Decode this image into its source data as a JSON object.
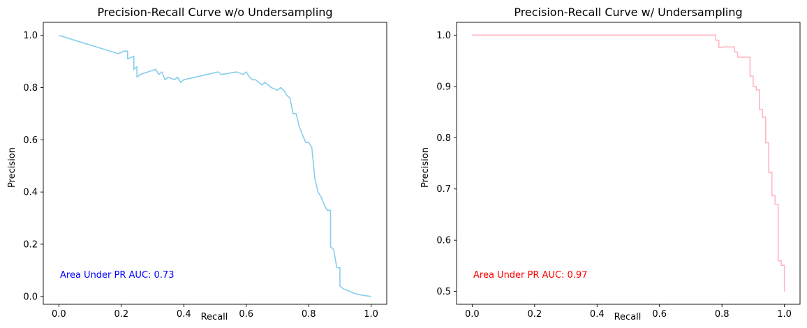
{
  "chart_data": [
    {
      "type": "line",
      "title": "Precision-Recall Curve w/o Undersampling",
      "xlabel": "Recall",
      "ylabel": "Precision",
      "xlim": [
        -0.05,
        1.05
      ],
      "ylim": [
        -0.03,
        1.05
      ],
      "xticks": [
        0.0,
        0.2,
        0.4,
        0.6,
        0.8,
        1.0
      ],
      "xtick_labels": [
        "0.0",
        "0.2",
        "0.4",
        "0.6",
        "0.8",
        "1.0"
      ],
      "yticks": [
        0.0,
        0.2,
        0.4,
        0.6,
        0.8,
        1.0
      ],
      "ytick_labels": [
        "0.0",
        "0.2",
        "0.4",
        "0.6",
        "0.8",
        "1.0"
      ],
      "grid": false,
      "line_color": "#87ceeb",
      "annotation": {
        "text": "Area Under PR AUC: 0.73",
        "color": "#0000ff",
        "x": 0.0,
        "y": 0.0
      },
      "series": [
        {
          "x": [
            0.0,
            0.19,
            0.21,
            0.22,
            0.22,
            0.24,
            0.24,
            0.25,
            0.25,
            0.26,
            0.31,
            0.32,
            0.33,
            0.34,
            0.35,
            0.37,
            0.38,
            0.39,
            0.4,
            0.51,
            0.52,
            0.57,
            0.59,
            0.6,
            0.61,
            0.62,
            0.63,
            0.64,
            0.65,
            0.66,
            0.67,
            0.68,
            0.7,
            0.71,
            0.72,
            0.73,
            0.74,
            0.75,
            0.76,
            0.77,
            0.78,
            0.79,
            0.8,
            0.81,
            0.82,
            0.83,
            0.84,
            0.85,
            0.86,
            0.87,
            0.87,
            0.88,
            0.89,
            0.9,
            0.9,
            0.91,
            0.93,
            0.95,
            0.97,
            1.0
          ],
          "y": [
            1.0,
            0.93,
            0.94,
            0.94,
            0.91,
            0.92,
            0.87,
            0.88,
            0.84,
            0.85,
            0.87,
            0.85,
            0.86,
            0.83,
            0.84,
            0.83,
            0.84,
            0.82,
            0.83,
            0.86,
            0.85,
            0.86,
            0.85,
            0.86,
            0.84,
            0.83,
            0.83,
            0.82,
            0.81,
            0.82,
            0.81,
            0.8,
            0.79,
            0.8,
            0.79,
            0.77,
            0.76,
            0.7,
            0.7,
            0.65,
            0.62,
            0.59,
            0.59,
            0.57,
            0.45,
            0.4,
            0.38,
            0.35,
            0.33,
            0.33,
            0.19,
            0.18,
            0.11,
            0.11,
            0.04,
            0.03,
            0.02,
            0.01,
            0.005,
            0.0
          ]
        }
      ]
    },
    {
      "type": "line",
      "title": "Precision-Recall Curve w/ Undersampling",
      "xlabel": "Recall",
      "ylabel": "Precision",
      "xlim": [
        -0.05,
        1.05
      ],
      "ylim": [
        0.475,
        1.025
      ],
      "xticks": [
        0.0,
        0.2,
        0.4,
        0.6,
        0.8,
        1.0
      ],
      "xtick_labels": [
        "0.0",
        "0.2",
        "0.4",
        "0.6",
        "0.8",
        "1.0"
      ],
      "yticks": [
        0.5,
        0.6,
        0.7,
        0.8,
        0.9,
        1.0
      ],
      "ytick_labels": [
        "0.5",
        "0.6",
        "0.7",
        "0.8",
        "0.9",
        "1.0"
      ],
      "grid": false,
      "line_color": "#ffb6c1",
      "annotation": {
        "text": "Area Under PR AUC: 0.97",
        "color": "#ff0000",
        "x": 0.0,
        "y": 0.5
      },
      "series": [
        {
          "x": [
            0.0,
            0.78,
            0.78,
            0.79,
            0.79,
            0.8,
            0.8,
            0.84,
            0.84,
            0.85,
            0.85,
            0.89,
            0.89,
            0.9,
            0.9,
            0.91,
            0.91,
            0.92,
            0.92,
            0.93,
            0.93,
            0.94,
            0.94,
            0.95,
            0.95,
            0.96,
            0.96,
            0.97,
            0.97,
            0.98,
            0.98,
            0.99,
            0.99,
            1.0,
            1.0
          ],
          "y": [
            1.0,
            1.0,
            0.99,
            0.99,
            0.976,
            0.976,
            0.977,
            0.977,
            0.967,
            0.967,
            0.957,
            0.957,
            0.92,
            0.92,
            0.9,
            0.9,
            0.893,
            0.893,
            0.855,
            0.855,
            0.84,
            0.84,
            0.79,
            0.79,
            0.732,
            0.732,
            0.687,
            0.687,
            0.67,
            0.67,
            0.56,
            0.56,
            0.551,
            0.551,
            0.5
          ]
        }
      ]
    }
  ]
}
